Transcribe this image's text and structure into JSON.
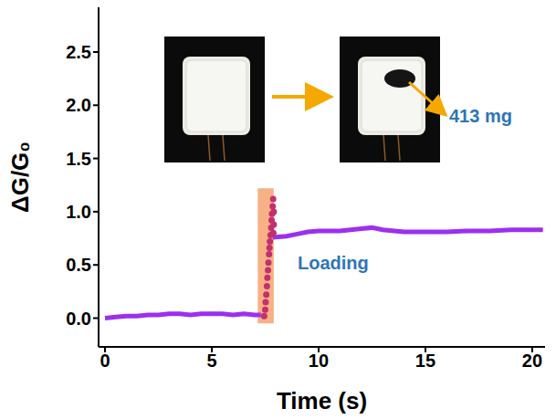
{
  "chart_data": {
    "type": "line",
    "xlabel": "Time (s)",
    "ylabel": "ΔG/G₀",
    "xlim": [
      -0.3,
      20.6
    ],
    "ylim": [
      -0.27,
      2.92
    ],
    "xticks": [
      0,
      5,
      10,
      15,
      20
    ],
    "yticks": [
      {
        "value": 0,
        "label": "0.0"
      },
      0.5,
      {
        "value": 1,
        "label": "1.0"
      },
      1.5,
      {
        "value": 2,
        "label": "2.0"
      },
      2.5
    ],
    "grid": false,
    "series": [
      {
        "type": "line",
        "color": "#9b30f0",
        "marker": "none",
        "line_style": "solid",
        "x": [
          0,
          0.5,
          1,
          1.5,
          2,
          2.5,
          3,
          3.5,
          4,
          4.5,
          5,
          5.5,
          6,
          6.5,
          7,
          7.3,
          7.6,
          7.85,
          8.5,
          9,
          9.5,
          10,
          11,
          12,
          12.5,
          13,
          14,
          15,
          16,
          17,
          18,
          19,
          20,
          20.5
        ],
        "values": [
          0.0,
          0.01,
          0.02,
          0.02,
          0.03,
          0.03,
          0.04,
          0.04,
          0.03,
          0.04,
          0.04,
          0.04,
          0.03,
          0.04,
          0.03,
          0.03,
          null,
          0.76,
          0.77,
          0.79,
          0.81,
          0.82,
          0.82,
          0.84,
          0.85,
          0.83,
          0.81,
          0.81,
          0.81,
          0.82,
          0.82,
          0.83,
          0.83,
          0.83
        ]
      },
      {
        "type": "scatter",
        "color": "#c2306e",
        "marker": "circle",
        "x": [
          7.45,
          7.5,
          7.52,
          7.55,
          7.58,
          7.6,
          7.63,
          7.65,
          7.68,
          7.7,
          7.72,
          7.75,
          7.78,
          7.8,
          7.82,
          7.85,
          7.87,
          7.9,
          7.9,
          7.88
        ],
        "values": [
          0.02,
          0.08,
          0.15,
          0.22,
          0.3,
          0.38,
          0.45,
          0.52,
          0.6,
          0.66,
          0.72,
          0.78,
          0.85,
          0.92,
          0.98,
          1.05,
          1.12,
          1.0,
          0.88,
          0.8
        ]
      }
    ],
    "highlight": {
      "x": [
        7.15,
        7.9
      ],
      "y": [
        -0.05,
        1.22
      ],
      "color": "#f7a36e"
    },
    "annotations": [
      "Loading",
      "413 mg"
    ]
  }
}
